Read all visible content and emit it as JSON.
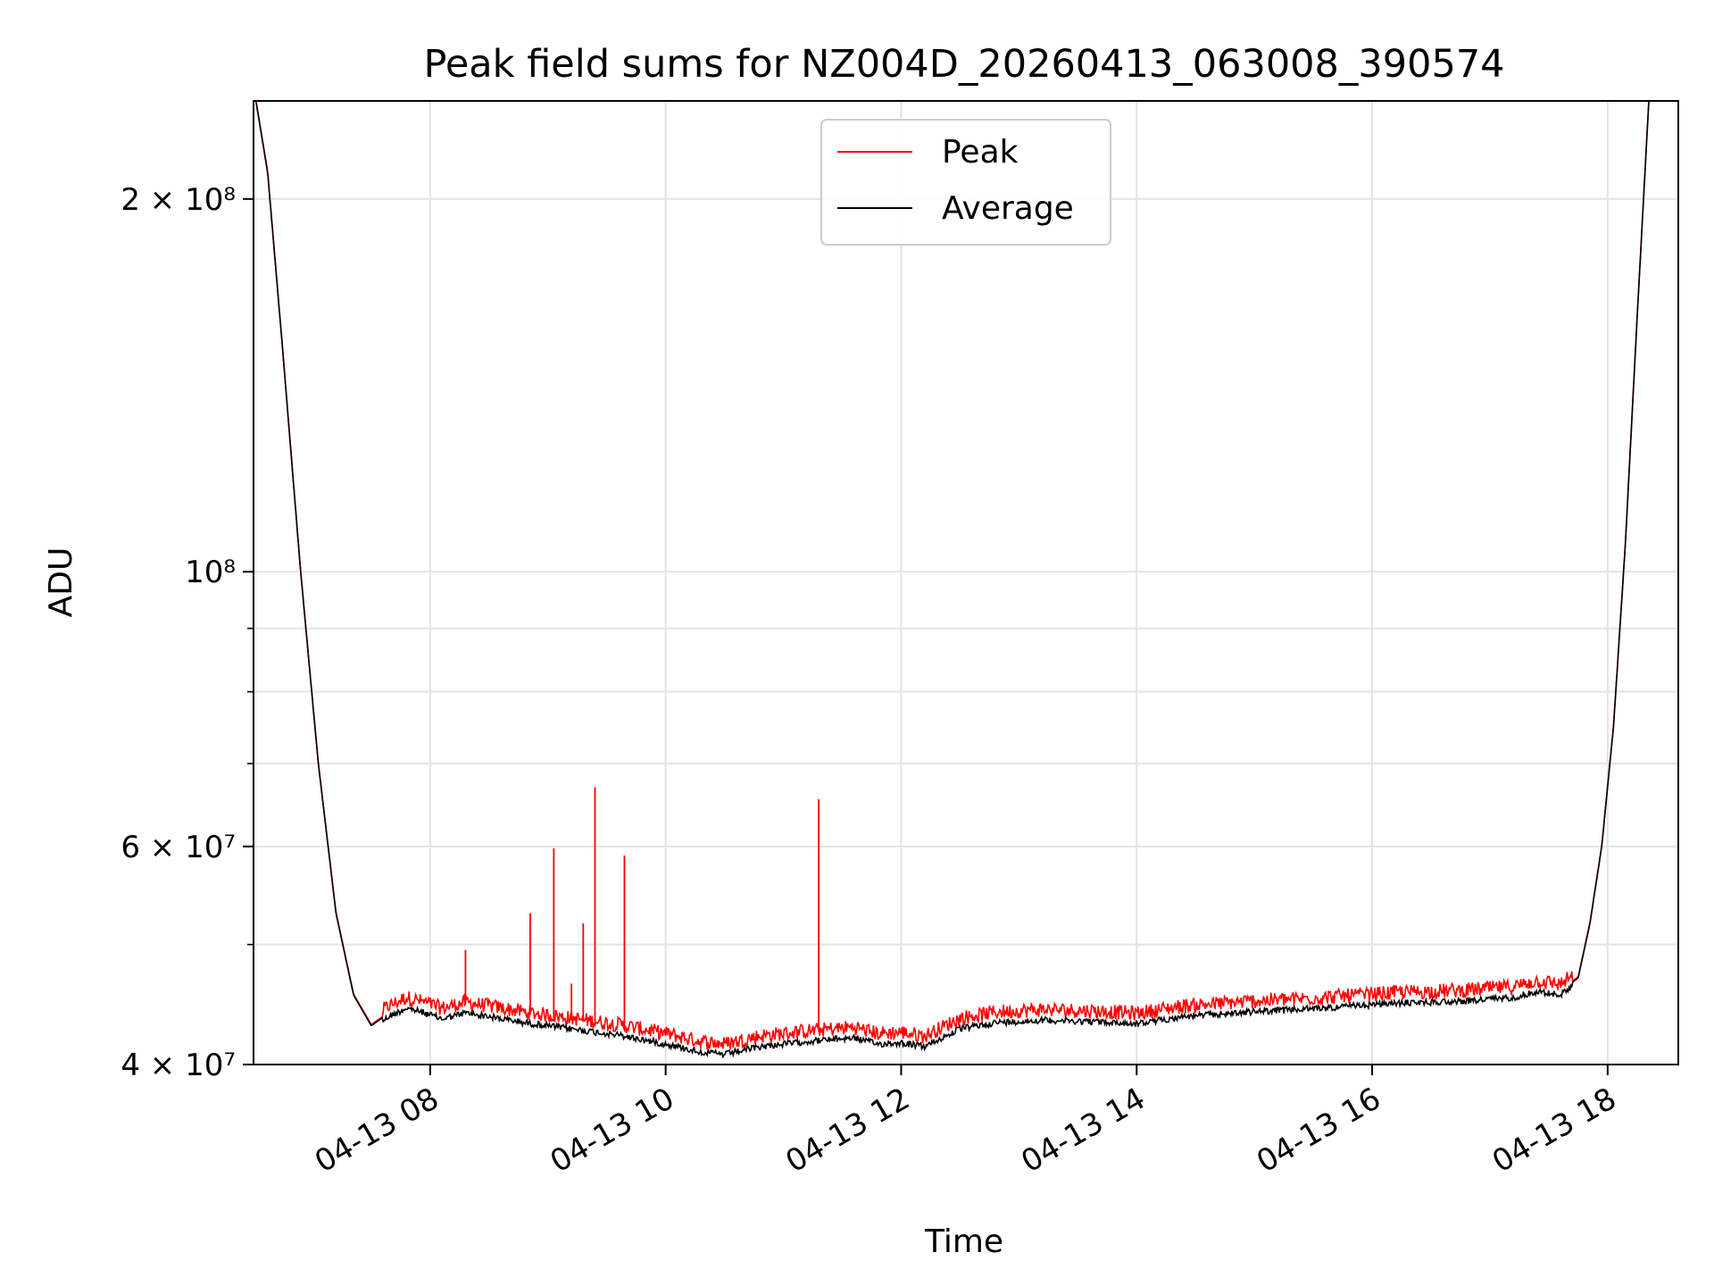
{
  "chart_data": {
    "type": "line",
    "title": "Peak field sums for NZ004D_20260413_063008_390574",
    "xlabel": "Time",
    "ylabel": "ADU",
    "yscale": "log",
    "ylim": [
      40000000,
      240000000
    ],
    "xlim_hours": [
      6.5,
      18.6
    ],
    "grid": true,
    "legend_position": "upper-center",
    "x_ticks": [
      {
        "value": 8,
        "label": "04-13 08"
      },
      {
        "value": 10,
        "label": "04-13 10"
      },
      {
        "value": 12,
        "label": "04-13 12"
      },
      {
        "value": 14,
        "label": "04-13 14"
      },
      {
        "value": 16,
        "label": "04-13 16"
      },
      {
        "value": 18,
        "label": "04-13 18"
      }
    ],
    "y_major_ticks": [
      {
        "value": 40000000,
        "label": "4 × 10⁷"
      },
      {
        "value": 60000000,
        "label": "6 × 10⁷"
      },
      {
        "value": 100000000,
        "label": "10⁸"
      },
      {
        "value": 200000000,
        "label": "2 × 10⁸"
      }
    ],
    "y_minor_ticks": [
      50000000,
      70000000,
      80000000,
      90000000
    ],
    "series": [
      {
        "name": "Average",
        "color": "#000000",
        "x_hours": [
          6.52,
          6.62,
          6.75,
          6.9,
          7.05,
          7.2,
          7.35,
          7.5,
          7.65,
          7.8,
          7.95,
          8.1,
          8.3,
          8.5,
          8.8,
          9.2,
          9.6,
          10.0,
          10.3,
          10.5,
          10.8,
          11.2,
          11.6,
          11.8,
          12.0,
          12.2,
          12.5,
          12.8,
          13.2,
          13.6,
          13.8,
          14.0,
          14.4,
          15.0,
          15.6,
          16.2,
          16.8,
          17.2,
          17.4,
          17.6,
          17.75,
          17.85,
          17.95,
          18.05,
          18.15,
          18.25,
          18.35
        ],
        "values": [
          240000000,
          210000000,
          150000000,
          100000000,
          70000000,
          53000000,
          45500000,
          43000000,
          44000000,
          44700000,
          44300000,
          43800000,
          44300000,
          44000000,
          43500000,
          43000000,
          42500000,
          41800000,
          41200000,
          41000000,
          41600000,
          42000000,
          42300000,
          41800000,
          41900000,
          41600000,
          43000000,
          43500000,
          43700000,
          43600000,
          43500000,
          43400000,
          44000000,
          44400000,
          44700000,
          45100000,
          45300000,
          45600000,
          46100000,
          45800000,
          47000000,
          52000000,
          60000000,
          75000000,
          105000000,
          160000000,
          240000000
        ]
      },
      {
        "name": "Peak",
        "color": "#ff0000",
        "spikes": [
          {
            "x_hour": 8.3,
            "value": 49500000
          },
          {
            "x_hour": 8.85,
            "value": 53000000
          },
          {
            "x_hour": 9.05,
            "value": 59800000
          },
          {
            "x_hour": 9.2,
            "value": 46500000
          },
          {
            "x_hour": 9.3,
            "value": 52000000
          },
          {
            "x_hour": 9.4,
            "value": 67000000
          },
          {
            "x_hour": 9.65,
            "value": 59000000
          },
          {
            "x_hour": 11.3,
            "value": 65500000
          }
        ]
      }
    ]
  }
}
